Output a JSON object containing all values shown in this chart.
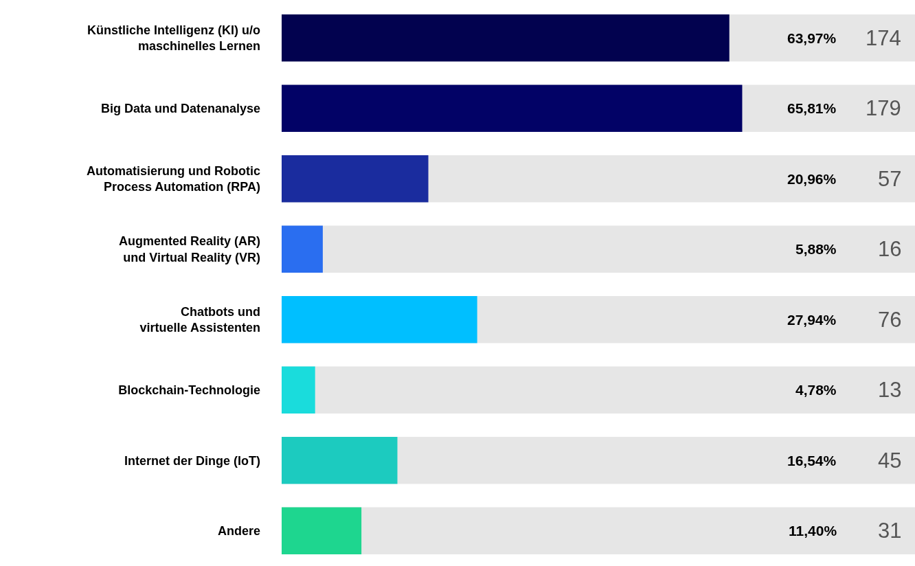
{
  "chart_data": {
    "type": "bar",
    "orientation": "horizontal",
    "categories": [
      "Künstliche Intelligenz (KI) u/o\nmaschinelles Lernen",
      "Big Data und Datenanalyse",
      "Automatisierung und Robotic\nProcess Automation (RPA)",
      "Augmented Reality (AR)\nund Virtual Reality (VR)",
      "Chatbots und\nvirtuelle Assistenten",
      "Blockchain-Technologie",
      "Internet der Dinge (IoT)",
      "Andere"
    ],
    "values": [
      63.97,
      65.81,
      20.96,
      5.88,
      27.94,
      4.78,
      16.54,
      11.4
    ],
    "colors": [
      "#02024f",
      "#020266",
      "#1a2c9e",
      "#2a6ef0",
      "#00bfff",
      "#1adcdc",
      "#1ccbbf",
      "#1ed68f"
    ],
    "value_labels": [
      "63,97%",
      "65,81%",
      "20,96%",
      "5,88%",
      "27,94%",
      "4,78%",
      "16,54%",
      "11,40%"
    ],
    "annotations": [
      "174",
      "179",
      "57",
      "16",
      "76",
      "13",
      "45",
      "31"
    ],
    "xlim": [
      0,
      90.5
    ],
    "tick_labels": "y"
  }
}
